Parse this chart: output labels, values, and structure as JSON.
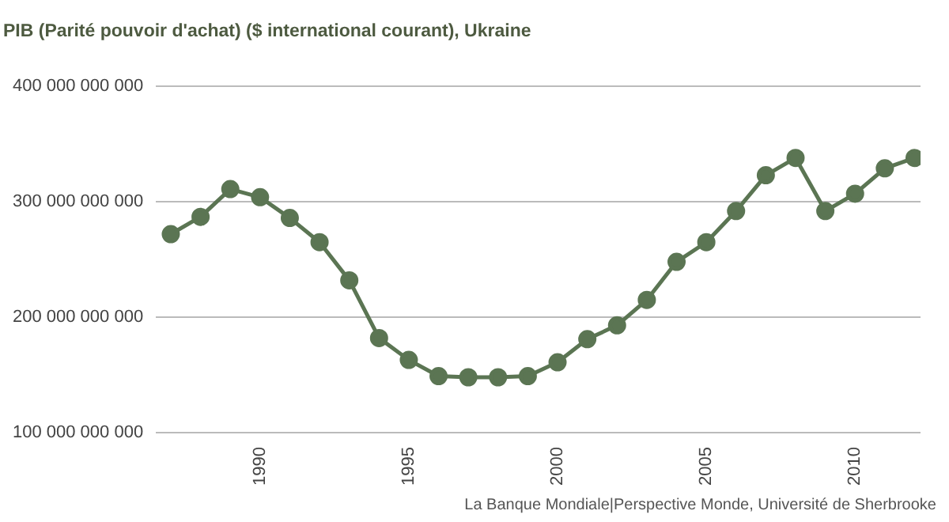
{
  "chart_data": {
    "type": "line",
    "title": "PIB (Parité pouvoir d'achat) ($ international courant), Ukraine",
    "x": [
      1987,
      1988,
      1989,
      1990,
      1991,
      1992,
      1993,
      1994,
      1995,
      1996,
      1997,
      1998,
      1999,
      2000,
      2001,
      2002,
      2003,
      2004,
      2005,
      2006,
      2007,
      2008,
      2009,
      2010,
      2011,
      2012
    ],
    "series": [
      {
        "color": "#5b7553",
        "values": [
          272000000000.0,
          287000000000.0,
          311000000000.0,
          304000000000.0,
          286000000000.0,
          265000000000.0,
          232000000000.0,
          182000000000.0,
          163000000000.0,
          149000000000.0,
          148000000000.0,
          148000000000.0,
          149000000000.0,
          161000000000.0,
          181000000000.0,
          193000000000.0,
          215000000000.0,
          248000000000.0,
          265000000000.0,
          292000000000.0,
          323000000000.0,
          338000000000.0,
          292000000000.0,
          307000000000.0,
          329000000000.0,
          338000000000.0
        ]
      }
    ],
    "xlim": [
      1986.5,
      2012.2
    ],
    "xticks": [
      1990,
      1995,
      2000,
      2005,
      2010
    ],
    "ylim": [
      100000000000.0,
      400000000000.0
    ],
    "yticks": [
      {
        "value": 100000000000.0,
        "label": "100 000 000 000"
      },
      {
        "value": 200000000000.0,
        "label": "200 000 000 000"
      },
      {
        "value": 300000000000.0,
        "label": "300 000 000 000"
      },
      {
        "value": 400000000000.0,
        "label": "400 000 000 000"
      }
    ],
    "grid": "y",
    "marker": "circle",
    "line_style": "solid",
    "legend": false,
    "annotations": [
      "La Banque Mondiale|Perspective Monde, Université de Sherbrooke"
    ]
  }
}
